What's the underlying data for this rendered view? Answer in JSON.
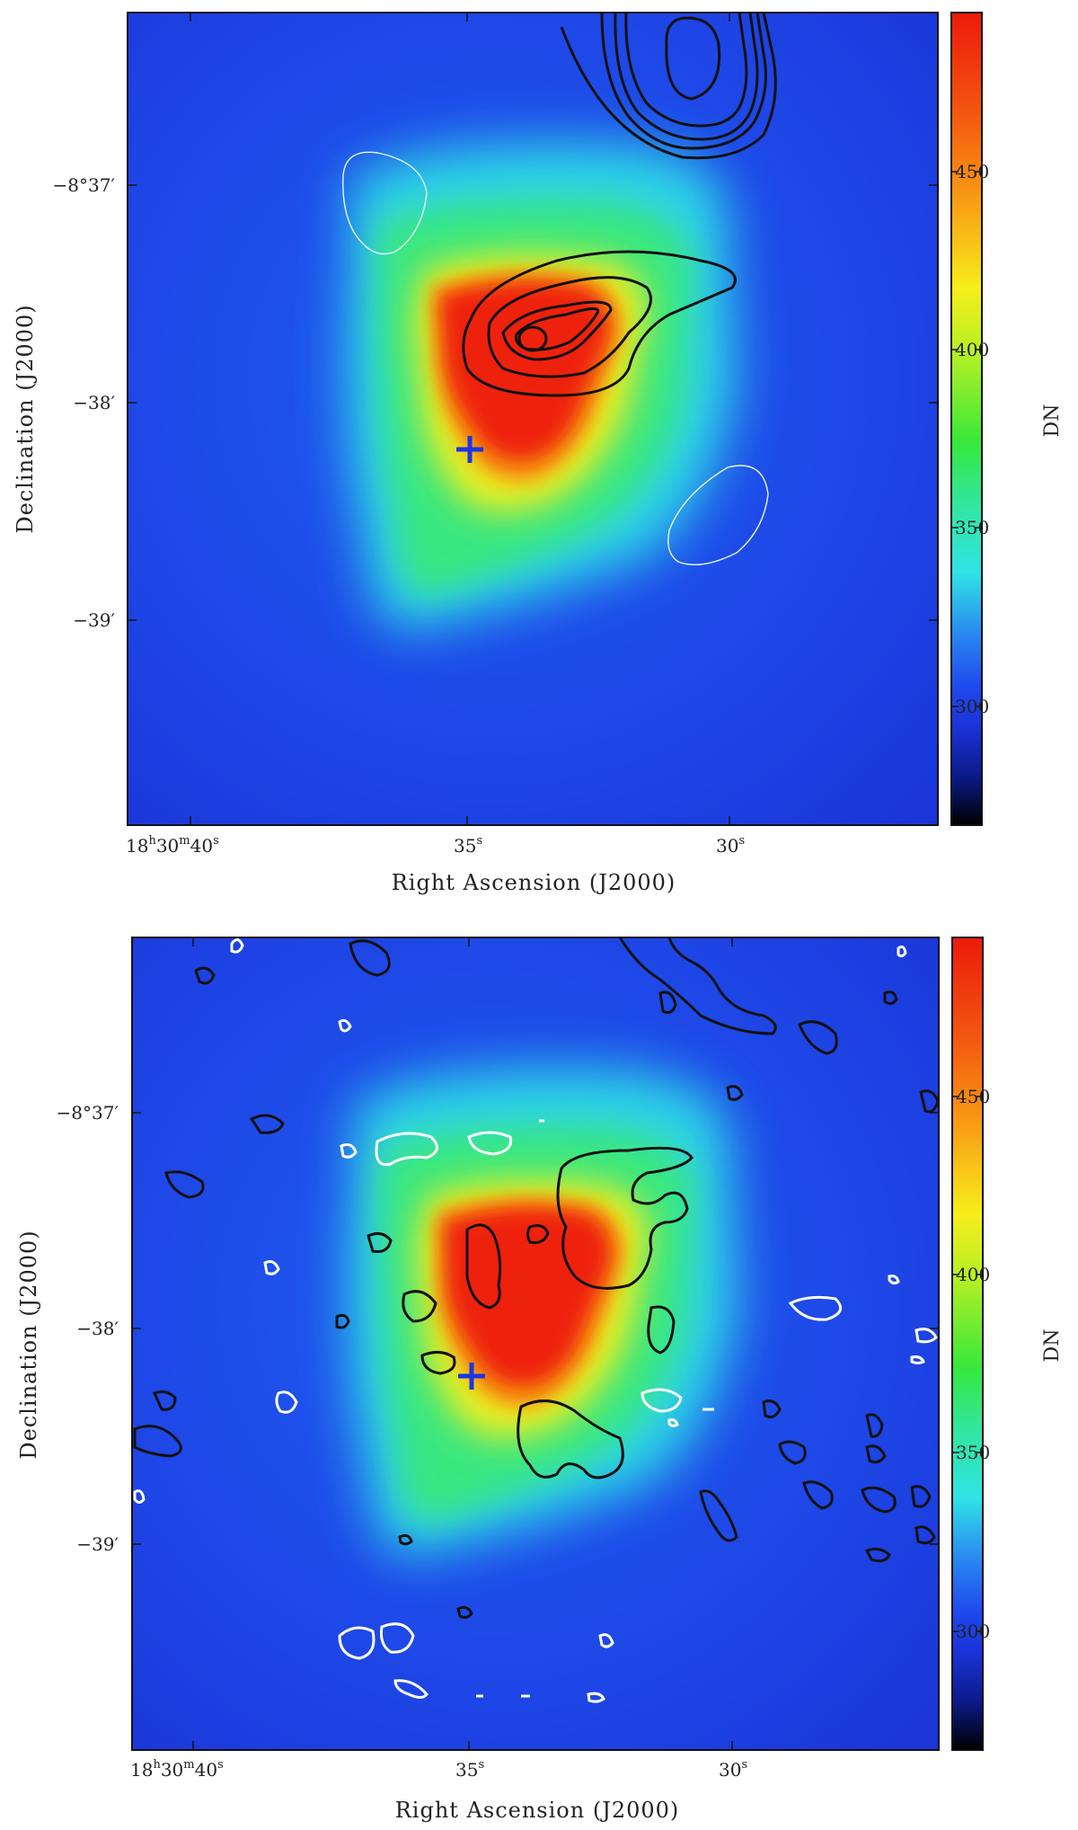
{
  "chart_data": [
    {
      "type": "heatmap",
      "panel": "top",
      "title": "",
      "xlabel": "Right Ascension (J2000)",
      "ylabel": "Declination (J2000)",
      "x_ticks": [
        {
          "value": 40,
          "label_main": "18",
          "label_parts": [
            [
              "18",
              "h"
            ],
            [
              "30",
              "m"
            ],
            [
              "40",
              "s"
            ]
          ]
        },
        {
          "value": 35,
          "label_parts": [
            [
              "35",
              "s"
            ]
          ]
        },
        {
          "value": 30,
          "label_parts": [
            [
              "30",
              "s"
            ]
          ]
        }
      ],
      "y_ticks": [
        {
          "value": -37,
          "label": "−8°37′"
        },
        {
          "value": -38,
          "label": "−38′"
        },
        {
          "value": -39,
          "label": "−39′"
        }
      ],
      "colorbar": {
        "label": "DN",
        "range": [
          265,
          492
        ],
        "ticks": [
          300,
          350,
          400,
          450
        ],
        "colormap": [
          "#000000",
          "#0a1fa0",
          "#1f3ce6",
          "#1f8cf0",
          "#2ee8e8",
          "#33ee55",
          "#f7f21d",
          "#fa8a12",
          "#ee1a0a"
        ]
      },
      "contours_black": "radio continuum (levels shown as closed contours)",
      "contours_white": "negative levels",
      "marker": {
        "symbol": "+",
        "color": "#1a35e6"
      }
    },
    {
      "type": "heatmap",
      "panel": "bottom",
      "title": "",
      "xlabel": "Right Ascension (J2000)",
      "ylabel": "Declination (J2000)",
      "x_ticks": [
        {
          "value": 40,
          "label_parts": [
            [
              "18",
              "h"
            ],
            [
              "30",
              "m"
            ],
            [
              "40",
              "s"
            ]
          ]
        },
        {
          "value": 35,
          "label_parts": [
            [
              "35",
              "s"
            ]
          ]
        },
        {
          "value": 30,
          "label_parts": [
            [
              "30",
              "s"
            ]
          ]
        }
      ],
      "y_ticks": [
        {
          "value": -37,
          "label": "−8°37′"
        },
        {
          "value": -38,
          "label": "−38′"
        },
        {
          "value": -39,
          "label": "−39′"
        }
      ],
      "colorbar": {
        "label": "DN",
        "range": [
          265,
          492
        ],
        "ticks": [
          300,
          350,
          400,
          450
        ],
        "colormap": [
          "#000000",
          "#0a1fa0",
          "#1f3ce6",
          "#1f8cf0",
          "#2ee8e8",
          "#33ee55",
          "#f7f21d",
          "#fa8a12",
          "#ee1a0a"
        ]
      },
      "marker": {
        "symbol": "+",
        "color": "#1a35e6"
      }
    }
  ]
}
